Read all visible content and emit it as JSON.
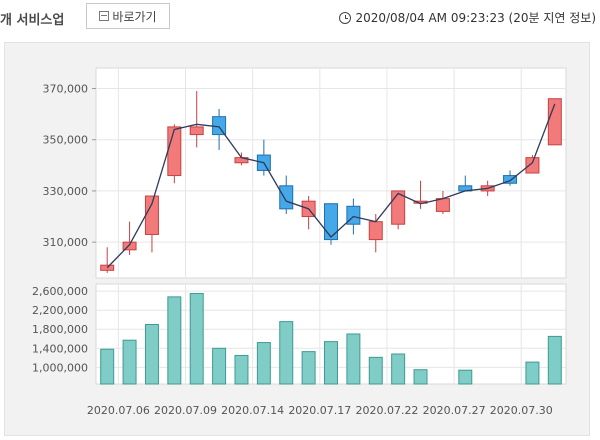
{
  "header": {
    "service_title": "개 서비스업",
    "shortcut_label": "바로가기",
    "timestamp": "2020/08/04 AM 09:23:23 (20분 지연 정보)"
  },
  "colors": {
    "up": "#f27a7a",
    "up_border": "#c94040",
    "down": "#45a8e8",
    "down_border": "#1f6fae",
    "volume": "#7fcdc6",
    "volume_border": "#3e9a93",
    "ma_line": "#2f3b5a"
  },
  "chart_data": [
    {
      "type": "candlestick",
      "title": "",
      "ylim": [
        296000,
        378000
      ],
      "y_ticks": [
        "370,000",
        "350,000",
        "330,000",
        "310,000"
      ],
      "y_tick_values": [
        370000,
        350000,
        330000,
        310000
      ],
      "grid": true,
      "candles": [
        {
          "open": 299000,
          "close": 301000,
          "high": 308000,
          "low": 298000
        },
        {
          "open": 307000,
          "close": 310000,
          "high": 318000,
          "low": 305000
        },
        {
          "open": 313000,
          "close": 328000,
          "high": 328000,
          "low": 306000
        },
        {
          "open": 336000,
          "close": 355000,
          "high": 356000,
          "low": 333000
        },
        {
          "open": 352000,
          "close": 355000,
          "high": 369000,
          "low": 347000
        },
        {
          "open": 359000,
          "close": 352000,
          "high": 362000,
          "low": 346000
        },
        {
          "open": 341000,
          "close": 343000,
          "high": 345000,
          "low": 340000
        },
        {
          "open": 344000,
          "close": 338000,
          "high": 350000,
          "low": 336000
        },
        {
          "open": 332000,
          "close": 323000,
          "high": 336000,
          "low": 321000
        },
        {
          "open": 320000,
          "close": 326000,
          "high": 328000,
          "low": 315000
        },
        {
          "open": 325000,
          "close": 311000,
          "high": 325000,
          "low": 309000
        },
        {
          "open": 324000,
          "close": 317000,
          "high": 327000,
          "low": 313000
        },
        {
          "open": 311000,
          "close": 318000,
          "high": 321000,
          "low": 306000
        },
        {
          "open": 317000,
          "close": 330000,
          "high": 330000,
          "low": 315000
        },
        {
          "open": 326000,
          "close": 326000,
          "high": 334000,
          "low": 323000
        },
        {
          "open": 322000,
          "close": 327000,
          "high": 330000,
          "low": 321000
        },
        {
          "open": 332000,
          "close": 330000,
          "high": 336000,
          "low": 330000
        },
        {
          "open": 330000,
          "close": 332000,
          "high": 334000,
          "low": 328000
        },
        {
          "open": 336000,
          "close": 333000,
          "high": 338000,
          "low": 332000
        },
        {
          "open": 337000,
          "close": 343000,
          "high": 344000,
          "low": 337000
        },
        {
          "open": 348000,
          "close": 366000,
          "high": 366000,
          "low": 348000
        }
      ],
      "moving_average": [
        300000,
        309000,
        325000,
        354000,
        356000,
        355000,
        343000,
        341000,
        326000,
        323000,
        312000,
        320000,
        318000,
        329000,
        325000,
        327000,
        330000,
        331000,
        334000,
        341000,
        364000
      ]
    },
    {
      "type": "bar",
      "title": "",
      "ylim": [
        650000,
        2750000
      ],
      "y_ticks": [
        "2,600,000",
        "2,200,000",
        "1,800,000",
        "1,400,000",
        "1,000,000"
      ],
      "y_tick_values": [
        2600000,
        2200000,
        1800000,
        1400000,
        1000000
      ],
      "values": [
        1380000,
        1570000,
        1900000,
        2480000,
        2550000,
        1400000,
        1250000,
        1520000,
        1960000,
        1330000,
        1540000,
        1700000,
        1210000,
        1280000,
        950000,
        null,
        940000,
        null,
        null,
        1110000,
        1650000
      ],
      "x_tick_labels": [
        "2020.07.06",
        "2020.07.09",
        "2020.07.14",
        "2020.07.17",
        "2020.07.22",
        "2020.07.27",
        "2020.07.30"
      ],
      "x_tick_indices": [
        1,
        4,
        7,
        10,
        13,
        16,
        19
      ]
    }
  ]
}
